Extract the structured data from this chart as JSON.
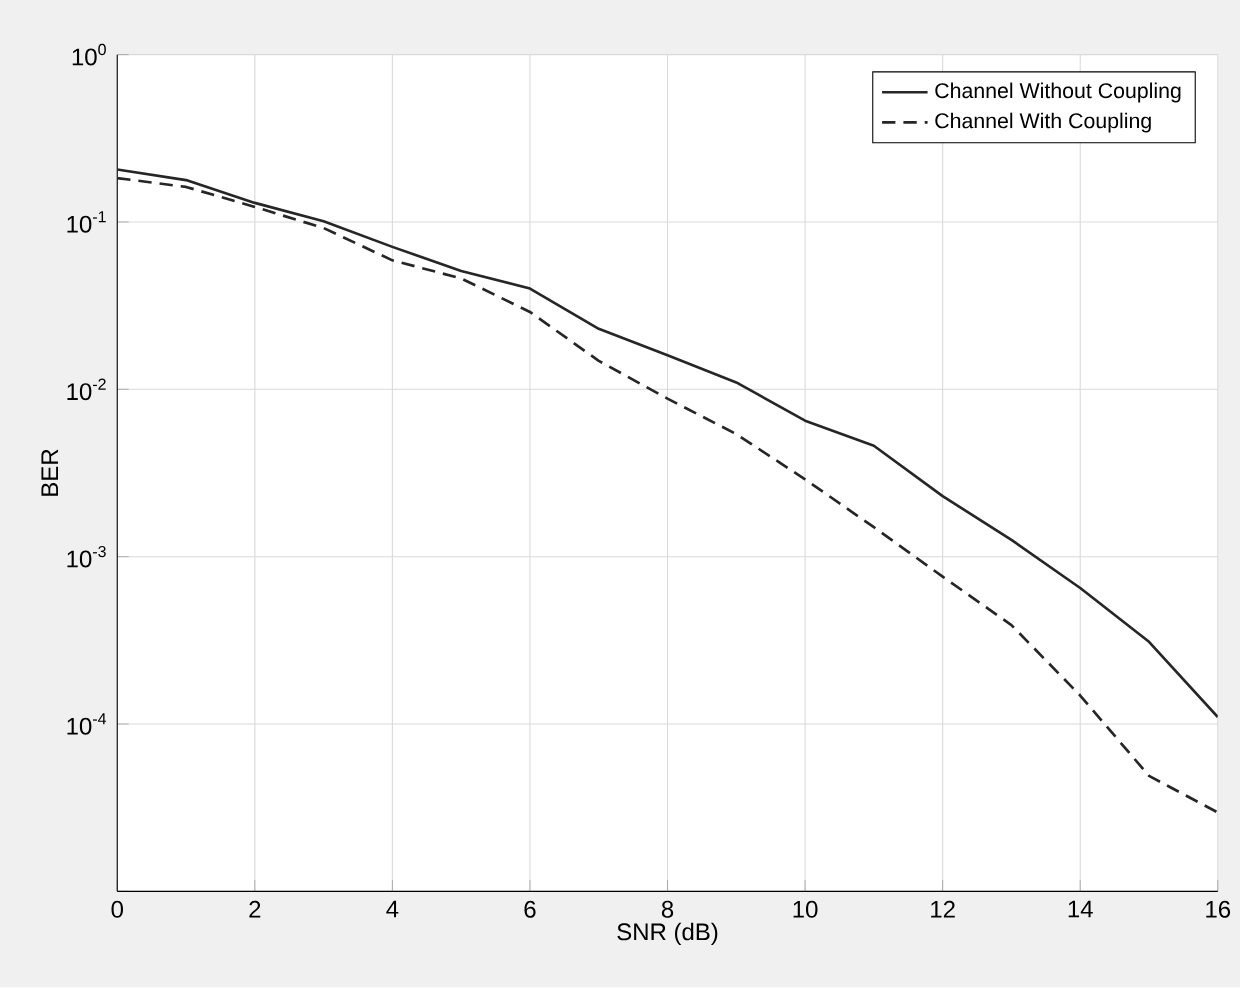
{
  "chart_data": {
    "type": "line",
    "xlabel": "SNR (dB)",
    "ylabel": "BER",
    "log": "y",
    "x": [
      0,
      1,
      2,
      3,
      4,
      5,
      6,
      7,
      8,
      9,
      10,
      11,
      12,
      13,
      14,
      15,
      16
    ],
    "xlim": [
      0,
      16
    ],
    "xticks": [
      0,
      2,
      4,
      6,
      8,
      10,
      12,
      14,
      16
    ],
    "ylim": [
      1e-05,
      1
    ],
    "yticks": [
      {
        "value": 1,
        "label": "10$^{0}$"
      },
      {
        "value": 0.1,
        "label": "10$^{-1}$"
      },
      {
        "value": 0.01,
        "label": "10$^{-2}$"
      },
      {
        "value": 0.001,
        "label": "10$^{-3}$"
      },
      {
        "value": 0.0001,
        "label": "10$^{-4}$"
      },
      {
        "value": 1e-05,
        "label": null
      }
    ],
    "grid": true,
    "legend": "top right",
    "marker": "none",
    "series": [
      {
        "name": "Channel Without Coupling",
        "color": "#262626",
        "line_style": "solid",
        "values": [
          0.206,
          0.178,
          0.13,
          0.101,
          0.071,
          0.051,
          0.04,
          0.023,
          0.016,
          0.011,
          0.0065,
          0.0046,
          0.0023,
          0.00126,
          0.00065,
          0.00031,
          0.00011
        ]
      },
      {
        "name": "Channel With Coupling",
        "color": "#262626",
        "line_style": "dashed",
        "values": [
          0.183,
          0.162,
          0.123,
          0.092,
          0.059,
          0.046,
          0.029,
          0.0148,
          0.0088,
          0.0054,
          0.0029,
          0.0015,
          0.00076,
          0.00039,
          0.000148,
          4.9e-05,
          2.96e-05
        ]
      }
    ]
  }
}
